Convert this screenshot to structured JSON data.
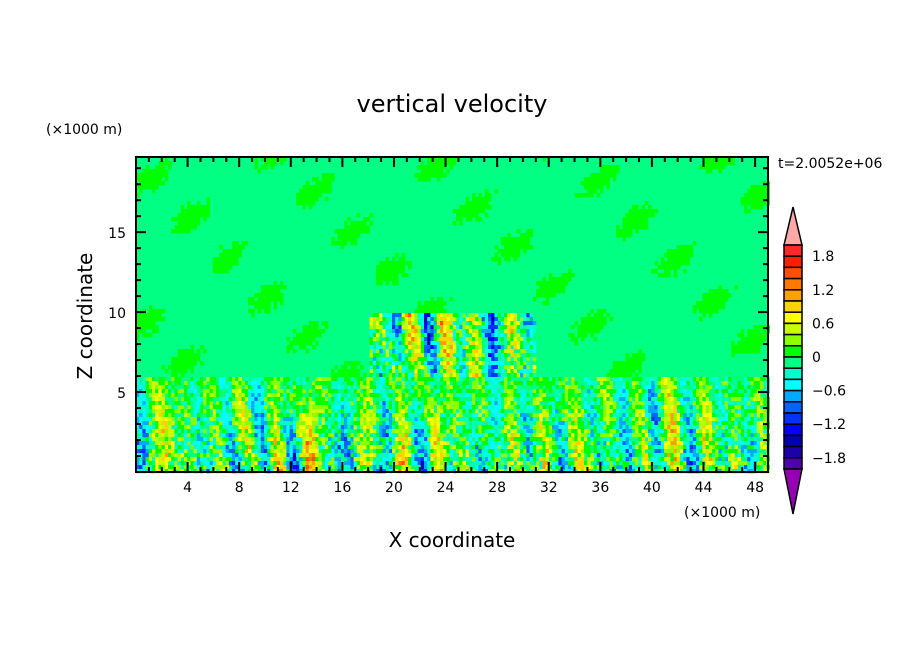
{
  "chart_data": {
    "type": "heatmap",
    "title": "vertical velocity",
    "xlabel": "X coordinate",
    "ylabel": "Z coordinate",
    "x_unit": "(×1000 m)",
    "y_unit": "(×1000 m)",
    "time_label": "t=2.0052e+06",
    "xlim": [
      0,
      49
    ],
    "ylim": [
      0,
      19.7
    ],
    "x_ticks": [
      4,
      8,
      12,
      16,
      20,
      24,
      28,
      32,
      36,
      40,
      44,
      48
    ],
    "x_tick_labels": [
      "4",
      "8",
      "12",
      "16",
      "20",
      "24",
      "28",
      "32",
      "36",
      "40",
      "44",
      "48"
    ],
    "y_ticks": [
      5,
      10,
      15
    ],
    "y_tick_labels": [
      "5",
      "10",
      "15"
    ],
    "colorbar": {
      "levels": [
        -2,
        -1.8,
        -1.6,
        -1.4,
        -1.2,
        -1,
        -0.8,
        -0.6,
        -0.4,
        -0.2,
        0,
        0.2,
        0.4,
        0.6,
        0.8,
        1,
        1.2,
        1.4,
        1.6,
        1.8,
        2
      ],
      "tick_labels": [
        "1.8",
        "1.2",
        "0.6",
        "0",
        "−0.6",
        "−1.2",
        "−1.8"
      ],
      "tick_values": [
        1.8,
        1.2,
        0.6,
        0,
        -0.6,
        -1.2,
        -1.8
      ],
      "colors_top_to_bottom": [
        "#ffa8a8",
        "#ff2828",
        "#ff1e00",
        "#ff5000",
        "#ff7800",
        "#ffa000",
        "#ffd200",
        "#ffff00",
        "#c8ff00",
        "#8cff00",
        "#00ff00",
        "#00ff82",
        "#00ffc8",
        "#00ffff",
        "#00aaff",
        "#0064ff",
        "#0032ff",
        "#0000ff",
        "#0000b4",
        "#1e00aa",
        "#5000b4",
        "#9600b4"
      ],
      "extend": "both"
    },
    "background_value_color": "#00ff82",
    "grid": false
  }
}
